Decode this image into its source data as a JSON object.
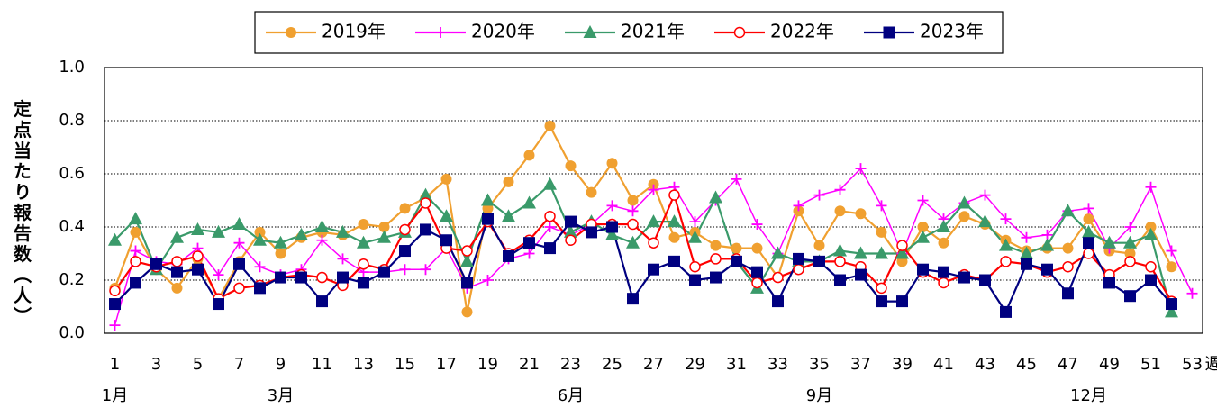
{
  "chart_data": {
    "type": "line",
    "y_label": "定点当たり報告数（人）",
    "x_unit": "週",
    "categories": [
      1,
      null,
      3,
      null,
      5,
      null,
      7,
      null,
      9,
      null,
      11,
      null,
      13,
      null,
      15,
      null,
      17,
      null,
      19,
      null,
      21,
      null,
      23,
      null,
      25,
      null,
      27,
      null,
      29,
      null,
      31,
      null,
      33,
      null,
      35,
      null,
      37,
      null,
      39,
      null,
      41,
      null,
      43,
      null,
      45,
      null,
      47,
      null,
      49,
      null,
      51,
      null,
      53
    ],
    "month_labels": [
      {
        "week": 1,
        "label": "1月"
      },
      {
        "week": 9,
        "label": "3月"
      },
      {
        "week": 23,
        "label": "6月"
      },
      {
        "week": 35,
        "label": "9月"
      },
      {
        "week": 48,
        "label": "12月"
      }
    ],
    "ylim": [
      0,
      1
    ],
    "yticks": [
      {
        "value": 0,
        "label": "0.0"
      },
      0.2,
      0.4,
      0.6,
      0.8,
      {
        "value": 1,
        "label": "1.0"
      }
    ],
    "grid": true,
    "legend": "top",
    "series": [
      {
        "name": "2019年",
        "color": "#f0a030",
        "marker": "circle",
        "values": [
          0.17,
          0.38,
          0.24,
          0.17,
          0.28,
          0.13,
          0.27,
          0.38,
          0.3,
          0.36,
          0.38,
          0.37,
          0.41,
          0.4,
          0.47,
          0.51,
          0.58,
          0.08,
          0.47,
          0.57,
          0.67,
          0.78,
          0.63,
          0.53,
          0.64,
          0.5,
          0.56,
          0.36,
          0.38,
          0.33,
          0.32,
          0.32,
          0.21,
          0.46,
          0.33,
          0.46,
          0.45,
          0.38,
          0.27,
          0.4,
          0.34,
          0.44,
          0.41,
          0.35,
          0.31,
          0.32,
          0.32,
          0.43,
          0.31,
          0.3,
          0.4,
          0.25,
          null
        ]
      },
      {
        "name": "2020年",
        "color": "#ff00ff",
        "marker": "plus",
        "values": [
          0.03,
          0.31,
          0.27,
          0.26,
          0.32,
          0.22,
          0.34,
          0.25,
          0.22,
          0.24,
          0.35,
          0.28,
          0.23,
          0.23,
          0.24,
          0.24,
          0.32,
          0.17,
          0.2,
          0.28,
          0.3,
          0.4,
          0.37,
          0.41,
          0.48,
          0.46,
          0.54,
          0.55,
          0.42,
          0.5,
          0.58,
          0.41,
          0.3,
          0.48,
          0.52,
          0.54,
          0.62,
          0.48,
          0.3,
          0.5,
          0.43,
          0.49,
          0.52,
          0.43,
          0.36,
          0.37,
          0.46,
          0.47,
          0.32,
          0.4,
          0.55,
          0.31,
          0.15
        ]
      },
      {
        "name": "2021年",
        "color": "#3a9a6a",
        "marker": "triangle",
        "values": [
          0.35,
          0.43,
          0.24,
          0.36,
          0.39,
          0.38,
          0.41,
          0.35,
          0.34,
          0.37,
          0.4,
          0.38,
          0.34,
          0.36,
          0.38,
          0.52,
          0.44,
          0.27,
          0.5,
          0.44,
          0.49,
          0.56,
          0.38,
          0.42,
          0.37,
          0.34,
          0.42,
          0.42,
          0.36,
          0.51,
          0.27,
          0.17,
          0.3,
          0.27,
          0.27,
          0.31,
          0.3,
          0.3,
          0.3,
          0.36,
          0.4,
          0.49,
          0.42,
          0.33,
          0.3,
          0.33,
          0.46,
          0.38,
          0.34,
          0.34,
          0.37,
          0.08,
          null
        ]
      },
      {
        "name": "2022年",
        "color": "#ff0000",
        "marker": "circle-open",
        "values": [
          0.16,
          0.27,
          0.25,
          0.27,
          0.29,
          0.13,
          0.17,
          0.18,
          0.21,
          0.22,
          0.21,
          0.18,
          0.26,
          0.24,
          0.39,
          0.49,
          0.32,
          0.31,
          0.42,
          0.3,
          0.35,
          0.44,
          0.35,
          0.41,
          0.41,
          0.41,
          0.34,
          0.52,
          0.25,
          0.28,
          0.28,
          0.19,
          0.21,
          0.24,
          0.27,
          0.27,
          0.25,
          0.17,
          0.33,
          0.23,
          0.19,
          0.22,
          0.2,
          0.27,
          0.26,
          0.23,
          0.25,
          0.3,
          0.22,
          0.27,
          0.25,
          0.12,
          null
        ]
      },
      {
        "name": "2023年",
        "color": "#000080",
        "marker": "square",
        "values": [
          0.11,
          0.19,
          0.26,
          0.23,
          0.24,
          0.11,
          0.26,
          0.17,
          0.21,
          0.21,
          0.12,
          0.21,
          0.19,
          0.23,
          0.31,
          0.39,
          0.35,
          0.19,
          0.43,
          0.29,
          0.34,
          0.32,
          0.42,
          0.38,
          0.4,
          0.13,
          0.24,
          0.27,
          0.2,
          0.21,
          0.27,
          0.23,
          0.12,
          0.28,
          0.27,
          0.2,
          0.22,
          0.12,
          0.12,
          0.24,
          0.23,
          0.21,
          0.2,
          0.08,
          0.26,
          0.24,
          0.15,
          0.34,
          0.19,
          0.14,
          0.2,
          0.11,
          null
        ]
      }
    ]
  }
}
